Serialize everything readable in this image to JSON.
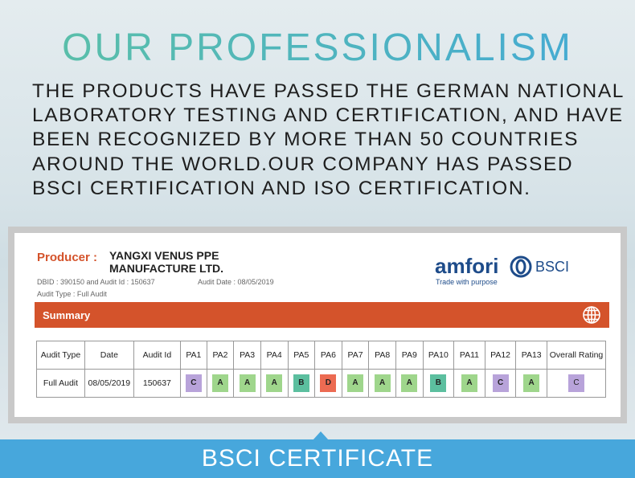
{
  "heading": "OUR PROFESSIONALISM",
  "intro_lines": [
    "THE PRODUCTS HAVE PASSED THE GERMAN NATIONAL",
    "LABORATORY TESTING AND CERTIFICATION, AND HAVE",
    "BEEN RECOGNIZED BY MORE THAN 50 COUNTRIES",
    "AROUND THE WORLD.OUR COMPANY HAS PASSED",
    "BSCI CERTIFICATION AND ISO CERTIFICATION."
  ],
  "certificate": {
    "producer_label": "Producer :",
    "producer_name": [
      "YANGXI VENUS PPE",
      "MANUFACTURE LTD."
    ],
    "ids": "DBID : 390150 and Audit Id : 150637",
    "audit_date": "Audit Date : 08/05/2019",
    "audit_type": "Audit Type : Full Audit",
    "logo": {
      "brand": "amfori",
      "program": "BSCI",
      "tagline": "Trade with purpose"
    },
    "summary_title": "Summary",
    "table": {
      "header": [
        "Audit Type",
        "Date",
        "Audit Id",
        "PA1",
        "PA2",
        "PA3",
        "PA4",
        "PA5",
        "PA6",
        "PA7",
        "PA8",
        "PA9",
        "PA10",
        "PA11",
        "PA12",
        "PA13",
        "Overall Rating"
      ],
      "row": [
        "Full Audit",
        "08/05/2019",
        "150637",
        "C",
        "A",
        "A",
        "A",
        "B",
        "D",
        "A",
        "A",
        "A",
        "B",
        "A",
        "C",
        "A",
        "C"
      ]
    },
    "rating_colors": {
      "A": "#9fd68c",
      "B": "#5cbf9f",
      "C": "#b8a3da",
      "D": "#ec6b52"
    }
  },
  "footer": "BSCI CERTIFICATE"
}
